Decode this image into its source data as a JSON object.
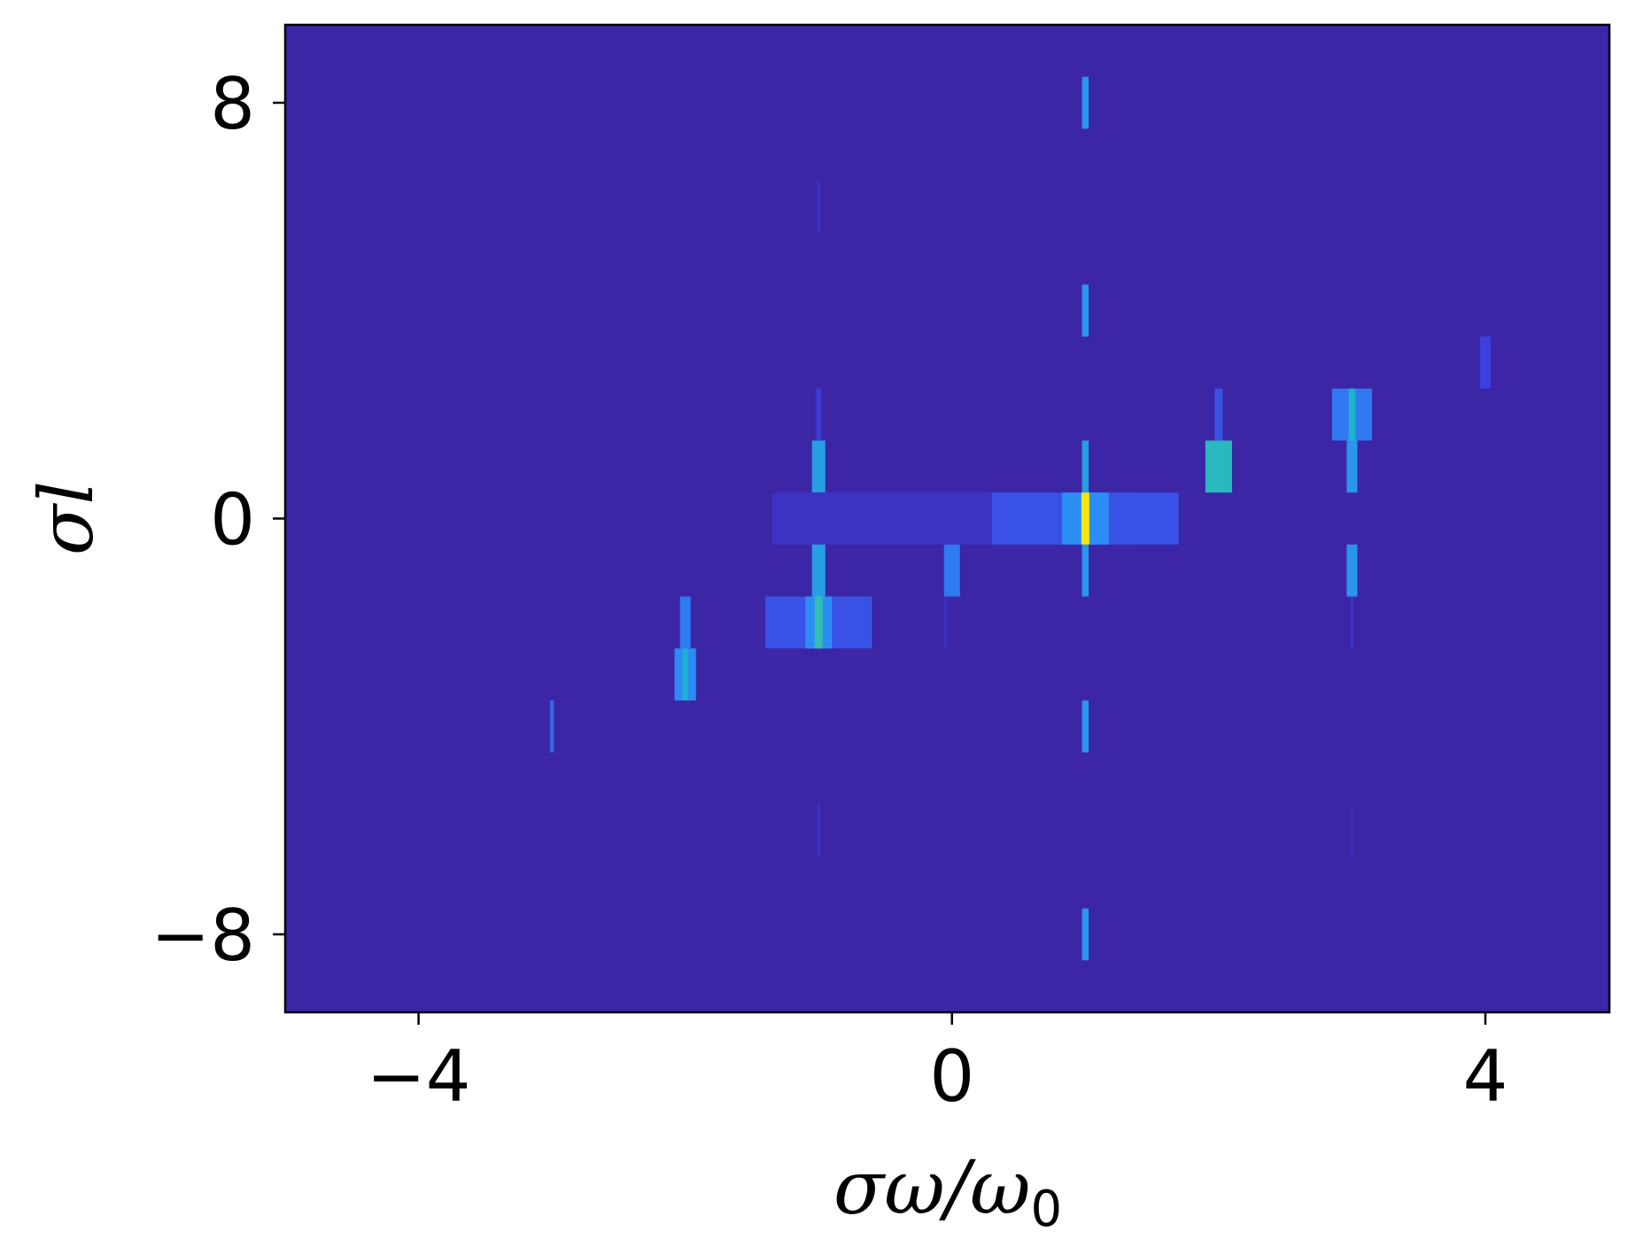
{
  "chart_data": {
    "type": "heatmap",
    "title": "",
    "xlabel": "σω/ω",
    "xlabel_subscript": "0",
    "ylabel": "σl",
    "xlim": [
      -5.0,
      4.93
    ],
    "ylim": [
      -9.5,
      9.5
    ],
    "xticks": [
      {
        "value": -4,
        "label": "−4"
      },
      {
        "value": 0,
        "label": "0"
      },
      {
        "value": 4,
        "label": "4"
      }
    ],
    "yticks": [
      {
        "value": 8,
        "label": "8"
      },
      {
        "value": 0,
        "label": "0"
      },
      {
        "value": -8,
        "label": "−8"
      }
    ],
    "grid": false,
    "legend": "none",
    "colormap": {
      "background": "#3c26a5",
      "stops": [
        "#3c26a5",
        "#3d3fe0",
        "#2b8cf5",
        "#1fb2cf",
        "#4bc88a",
        "#f5e60f"
      ]
    },
    "cells": [
      {
        "x": 1.0,
        "l": 8,
        "w": 0.05,
        "intensity": 0.45
      },
      {
        "x": -1.0,
        "l": 6,
        "w": 0.02,
        "intensity": 0.12
      },
      {
        "x": 1.0,
        "l": 4,
        "w": 0.05,
        "intensity": 0.45
      },
      {
        "x": 4.0,
        "l": 3,
        "w": 0.08,
        "intensity": 0.2
      },
      {
        "x": -1.0,
        "l": 2,
        "w": 0.04,
        "intensity": 0.15
      },
      {
        "x": 2.0,
        "l": 2,
        "w": 0.06,
        "intensity": 0.25
      },
      {
        "x": 3.0,
        "l": 2,
        "w": 0.3,
        "intensity": 0.35
      },
      {
        "x": 3.0,
        "l": 2,
        "w": 0.05,
        "intensity": 0.6
      },
      {
        "x": -1.0,
        "l": 1,
        "w": 0.1,
        "intensity": 0.5
      },
      {
        "x": 1.0,
        "l": 1,
        "w": 0.05,
        "intensity": 0.5
      },
      {
        "x": 2.0,
        "l": 1,
        "w": 0.2,
        "intensity": 0.65
      },
      {
        "x": 3.0,
        "l": 1,
        "w": 0.08,
        "intensity": 0.45
      },
      {
        "x": 0.0,
        "l": 0,
        "w": 2.7,
        "intensity": 0.1
      },
      {
        "x": 1.0,
        "l": 0,
        "w": 1.4,
        "intensity": 0.25
      },
      {
        "x": 1.0,
        "l": 0,
        "w": 0.35,
        "intensity": 0.4
      },
      {
        "x": 1.0,
        "l": 0,
        "w": 0.06,
        "intensity": 1.0
      },
      {
        "x": -1.0,
        "l": -1,
        "w": 0.1,
        "intensity": 0.5
      },
      {
        "x": 0.0,
        "l": -1,
        "w": 0.12,
        "intensity": 0.35
      },
      {
        "x": 1.0,
        "l": -1,
        "w": 0.05,
        "intensity": 0.45
      },
      {
        "x": 3.0,
        "l": -1,
        "w": 0.08,
        "intensity": 0.45
      },
      {
        "x": -2.0,
        "l": -2,
        "w": 0.08,
        "intensity": 0.35
      },
      {
        "x": -1.0,
        "l": -2,
        "w": 0.8,
        "intensity": 0.25
      },
      {
        "x": -1.0,
        "l": -2,
        "w": 0.2,
        "intensity": 0.4
      },
      {
        "x": -1.0,
        "l": -2,
        "w": 0.06,
        "intensity": 0.7
      },
      {
        "x": -0.05,
        "l": -2,
        "w": 0.02,
        "intensity": 0.08
      },
      {
        "x": 3.0,
        "l": -2,
        "w": 0.02,
        "intensity": 0.12
      },
      {
        "x": -2.0,
        "l": -3,
        "w": 0.16,
        "intensity": 0.4
      },
      {
        "x": -2.0,
        "l": -3,
        "w": 0.04,
        "intensity": 0.6
      },
      {
        "x": -3.0,
        "l": -4,
        "w": 0.03,
        "intensity": 0.3
      },
      {
        "x": 1.0,
        "l": -4,
        "w": 0.05,
        "intensity": 0.45
      },
      {
        "x": -1.0,
        "l": -6,
        "w": 0.02,
        "intensity": 0.12
      },
      {
        "x": 3.0,
        "l": -6,
        "w": 0.02,
        "intensity": 0.08
      },
      {
        "x": 1.0,
        "l": -8,
        "w": 0.05,
        "intensity": 0.45
      }
    ]
  }
}
